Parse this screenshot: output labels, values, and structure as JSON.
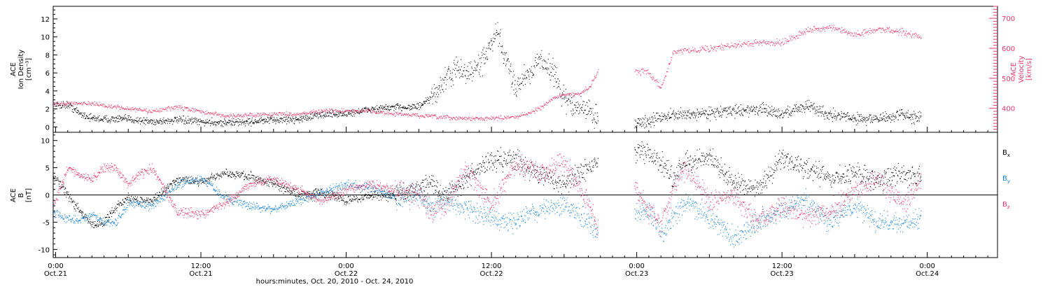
{
  "figure": {
    "xlabel": "hours:minutes, Oct. 20, 2010 - Oct. 24, 2010",
    "x_ticks": [
      {
        "hours": 0,
        "time": "0:00",
        "date": "Oct.21"
      },
      {
        "hours": 12,
        "time": "12:00",
        "date": "Oct.21"
      },
      {
        "hours": 24,
        "time": "0:00",
        "date": "Oct.22"
      },
      {
        "hours": 36,
        "time": "12:00",
        "date": "Oct.22"
      },
      {
        "hours": 48,
        "time": "0:00",
        "date": "Oct.23"
      },
      {
        "hours": 60,
        "time": "12:00",
        "date": "Oct.23"
      },
      {
        "hours": 72,
        "time": "0:00",
        "date": "Oct.24"
      }
    ],
    "x_range_hours_from_oct21": [
      -0.2,
      77.8
    ]
  },
  "colors": {
    "black": "#000000",
    "pink": "#e8386a",
    "blue": "#1a86d8"
  },
  "chart_data": [
    {
      "type": "scatter",
      "panel": "top",
      "ylabel_left": [
        "ACE",
        "Ion Density",
        "[cm⁻³]"
      ],
      "ylabel_right": [
        "ACE",
        "Velocity",
        "[km/s]"
      ],
      "y_ticks_left": [
        0,
        2,
        4,
        6,
        8,
        10,
        12
      ],
      "y_ticks_right": [
        400,
        500,
        600,
        700
      ],
      "ylim_left": [
        -0.6,
        13.4
      ],
      "ylim_right": [
        320,
        740
      ],
      "data_gap_hours": [
        [
          44.8,
          47.8
        ]
      ],
      "series": [
        {
          "axis": "left",
          "color": "black",
          "x": [
            -0.2,
            1,
            2,
            3,
            4,
            6,
            8,
            10,
            12,
            14,
            16,
            18,
            20,
            22,
            24,
            26,
            28,
            30,
            31,
            32,
            33,
            34,
            35,
            36,
            36.5,
            37,
            38,
            39,
            40,
            41,
            42,
            43,
            44,
            44.8,
            47.8,
            49,
            50,
            52,
            54,
            56,
            58,
            60,
            62,
            64,
            66,
            68,
            70,
            71.5
          ],
          "y": [
            2.4,
            2.5,
            1.5,
            1.0,
            0.9,
            0.9,
            0.6,
            0.8,
            0.6,
            0.5,
            0.6,
            0.8,
            0.9,
            1.4,
            1.5,
            2.0,
            2.2,
            2.3,
            3.2,
            5.0,
            6.4,
            6.0,
            6.8,
            9.2,
            10.5,
            8.0,
            4.5,
            6.0,
            7.5,
            6.5,
            3.0,
            2.2,
            2.0,
            0.8,
            0.5,
            0.6,
            1.2,
            1.4,
            1.6,
            1.8,
            2.0,
            1.5,
            2.4,
            1.4,
            1.0,
            0.9,
            1.4,
            1.0
          ]
        },
        {
          "axis": "right",
          "color": "pink",
          "x": [
            -0.2,
            2,
            4,
            6,
            8,
            10,
            12,
            14,
            16,
            18,
            20,
            22,
            24,
            26,
            28,
            30,
            32,
            34,
            36,
            38,
            40,
            41,
            42,
            43,
            44,
            44.8,
            47.8,
            49,
            50,
            50.5,
            51,
            52,
            54,
            56,
            58,
            60,
            62,
            64,
            66,
            68,
            70,
            71.5
          ],
          "y": [
            415,
            420,
            410,
            400,
            390,
            405,
            390,
            375,
            378,
            382,
            382,
            392,
            392,
            392,
            382,
            377,
            370,
            367,
            367,
            372,
            400,
            432,
            448,
            445,
            468,
            525,
            525,
            520,
            470,
            530,
            585,
            595,
            600,
            610,
            620,
            620,
            660,
            670,
            645,
            665,
            655,
            640
          ]
        }
      ]
    },
    {
      "type": "scatter",
      "panel": "bottom",
      "ylabel_left": [
        "ACE",
        "B",
        "[nT]"
      ],
      "y_ticks_left": [
        -10,
        -5,
        0,
        5,
        10
      ],
      "ylim": [
        -11.5,
        11.5
      ],
      "zero_line": true,
      "data_gap_hours": [
        [
          44.8,
          47.8
        ]
      ],
      "legend": [
        "Bx",
        "By",
        "Bz"
      ],
      "series": [
        {
          "name": "Bx",
          "color": "black",
          "x": [
            -0.2,
            1,
            2,
            3,
            4,
            5,
            6,
            7,
            8,
            10,
            12,
            14,
            16,
            18,
            20,
            22,
            24,
            26,
            28,
            30,
            31,
            32,
            34,
            36,
            38,
            40,
            42,
            44,
            44.8,
            47.8,
            49,
            50,
            51,
            52,
            54,
            56,
            58,
            60,
            62,
            64,
            66,
            68,
            70,
            71.5
          ],
          "y": [
            3.5,
            0,
            -3,
            -5.5,
            -5,
            -2,
            -0.5,
            -1,
            -1,
            3,
            2.5,
            4,
            3.5,
            2,
            0,
            0.5,
            -1,
            0,
            0,
            1.5,
            2.5,
            0,
            3,
            6.5,
            6.5,
            4,
            2,
            5,
            6,
            8,
            8,
            6,
            3,
            6,
            7,
            2,
            1,
            7,
            5,
            3,
            4,
            3,
            4,
            3
          ]
        },
        {
          "name": "By",
          "color": "blue",
          "x": [
            -0.2,
            1,
            2,
            3,
            4,
            5,
            6,
            7,
            8,
            10,
            12,
            14,
            16,
            18,
            20,
            22,
            24,
            26,
            28,
            30,
            31,
            32,
            34,
            36,
            38,
            40,
            42,
            44,
            44.8,
            47.8,
            49,
            50,
            51,
            52,
            54,
            56,
            58,
            60,
            62,
            64,
            66,
            68,
            70,
            71.5
          ],
          "y": [
            -3,
            -4.5,
            -4.5,
            -3.5,
            -5,
            -5,
            -1.5,
            -1.5,
            -2,
            2,
            3,
            -0.5,
            -2,
            -2.5,
            -1,
            0.5,
            2,
            1.5,
            -0.5,
            0,
            -2,
            -1,
            -2.5,
            -4.5,
            -5,
            -2.5,
            -1.5,
            -5,
            -7,
            -3,
            -3,
            -7,
            -4,
            -1,
            -4,
            -8,
            -5,
            -3,
            -1,
            -5,
            -2,
            -5,
            -5,
            -4
          ]
        },
        {
          "name": "Bz",
          "color": "pink",
          "x": [
            -0.2,
            1,
            2,
            3,
            4,
            5,
            6,
            7,
            8,
            10,
            12,
            14,
            16,
            18,
            20,
            22,
            24,
            26,
            28,
            30,
            31,
            32,
            34,
            36,
            38,
            40,
            42,
            44,
            44.8,
            47.8,
            49,
            50,
            51,
            52,
            54,
            56,
            58,
            60,
            62,
            64,
            66,
            68,
            70,
            71.5
          ],
          "y": [
            -2,
            5,
            3.5,
            3,
            5,
            5,
            2,
            4,
            5,
            -3,
            -3.5,
            -1.5,
            2,
            3,
            1,
            -1,
            1,
            2,
            1,
            0,
            -3,
            -2,
            5,
            -2,
            6,
            4,
            6,
            -1.5,
            -6,
            2,
            -3,
            -5,
            1,
            5,
            -1,
            0,
            -5,
            -2,
            -4,
            -3,
            1,
            3,
            -2,
            3
          ]
        }
      ]
    }
  ]
}
